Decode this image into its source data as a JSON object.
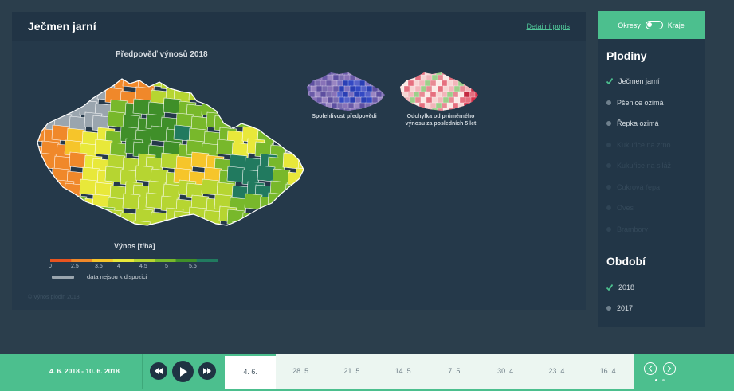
{
  "header": {
    "title": "Ječmen jarní",
    "detail_link": "Detailní popis"
  },
  "map": {
    "title": "Předpověď výnosů 2018",
    "mini_map_1_label": "Spolehlivost předpovědi",
    "mini_map_2_label_line1": "Odchylka od průměrného",
    "mini_map_2_label_line2": "výnosu za posledních 5 let"
  },
  "legend": {
    "title": "Výnos [t/ha]",
    "ticks": [
      "0",
      "2.5",
      "3.5",
      "4",
      "4.5",
      "5",
      "5.5"
    ],
    "na_label": "data nejsou k dispozici",
    "colors": [
      "#e9541f",
      "#f0882a",
      "#f6c52a",
      "#e8e83a",
      "#b6d531",
      "#78b82b",
      "#3f8f29",
      "#217a5f"
    ]
  },
  "source_note": "© Výnos plodin 2018",
  "side": {
    "toggle_left": "Okresy",
    "toggle_right": "Kraje",
    "crops_heading": "Plodiny",
    "crops": [
      {
        "label": "Ječmen jarní",
        "selected": true,
        "enabled": true
      },
      {
        "label": "Pšenice ozimá",
        "selected": false,
        "enabled": true
      },
      {
        "label": "Řepka ozimá",
        "selected": false,
        "enabled": true
      },
      {
        "label": "Kukuřice na zrno",
        "selected": false,
        "enabled": false
      },
      {
        "label": "Kukuřice na siláž",
        "selected": false,
        "enabled": false
      },
      {
        "label": "Cukrová řepa",
        "selected": false,
        "enabled": false
      },
      {
        "label": "Oves",
        "selected": false,
        "enabled": false
      },
      {
        "label": "Brambory",
        "selected": false,
        "enabled": false
      }
    ],
    "period_heading": "Období",
    "periods": [
      {
        "label": "2018",
        "selected": true
      },
      {
        "label": "2017",
        "selected": false
      }
    ]
  },
  "timeline": {
    "date_range": "4. 6. 2018 - 10. 6. 2018",
    "weeks": [
      "4. 6.",
      "28. 5.",
      "21. 5.",
      "14. 5.",
      "7. 5.",
      "30. 4.",
      "23. 4.",
      "16. 4."
    ],
    "active_index": 0
  }
}
